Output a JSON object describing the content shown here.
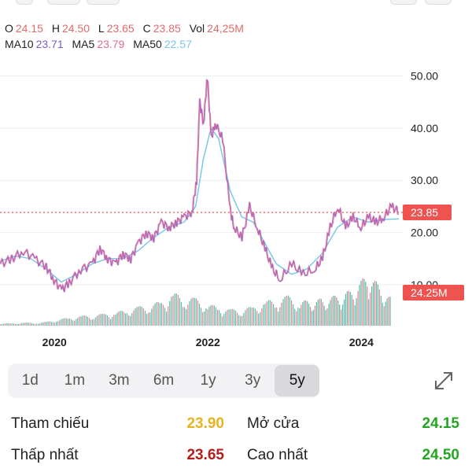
{
  "ohlc": {
    "open_label": "O",
    "open": "24.15",
    "high_label": "H",
    "high": "24.50",
    "low_label": "L",
    "low": "23.65",
    "close_label": "C",
    "close": "23.85",
    "vol_label": "Vol",
    "vol": "24,25M"
  },
  "ma": {
    "ma10_label": "MA10",
    "ma10": "23.71",
    "ma5_label": "MA5",
    "ma5": "23.79",
    "ma50_label": "MA50",
    "ma50": "22.57"
  },
  "colors": {
    "up": "#2a9d8f",
    "down": "#e05a5a",
    "ma10": "#7a5bd0",
    "ma5": "#e06b9a",
    "ma50": "#7cc7ea",
    "price_badge": "#ef5350",
    "gold": "#e6b422",
    "dark_red": "#b51c1c",
    "green": "#22a722"
  },
  "chart_data": {
    "type": "line",
    "x_ticks": [
      "2020",
      "2022",
      "2024"
    ],
    "y_ticks": [
      "50.00",
      "40.00",
      "30.00",
      "20.00",
      "10.00"
    ],
    "ylim": [
      2,
      54
    ],
    "last_price": "23.85",
    "last_volume": "24.25M",
    "series": [
      {
        "x": [
          2019.3,
          2019.45,
          2019.6,
          2019.75,
          2019.9,
          2020.0,
          2020.1,
          2020.2,
          2020.35,
          2020.5,
          2020.6,
          2020.7,
          2020.8,
          2020.9,
          2021.0,
          2021.1,
          2021.2,
          2021.3,
          2021.4,
          2021.5,
          2021.6,
          2021.7,
          2021.8,
          2021.86,
          2021.9,
          2021.95,
          2022.0,
          2022.05,
          2022.1,
          2022.2,
          2022.3,
          2022.35,
          2022.45,
          2022.55,
          2022.65,
          2022.75,
          2022.85,
          2022.95,
          2023.1,
          2023.25,
          2023.4,
          2023.5,
          2023.6,
          2023.7,
          2023.8,
          2023.9,
          2024.0,
          2024.1,
          2024.2,
          2024.3,
          2024.4,
          2024.5
        ],
        "values": [
          14,
          15,
          16.5,
          15,
          13.5,
          11,
          9,
          10.5,
          13,
          14,
          17,
          15,
          14,
          16,
          15,
          18,
          20,
          19,
          22,
          21,
          22,
          23,
          24,
          30,
          45,
          41,
          50,
          38,
          41,
          38,
          24,
          21,
          19,
          25,
          21,
          17,
          13,
          11,
          14,
          12,
          13,
          15,
          21,
          25,
          21,
          23,
          21,
          23,
          22,
          23,
          25,
          24
        ]
      },
      {
        "x": [
          2019.3,
          2019.5,
          2019.7,
          2019.9,
          2020.1,
          2020.3,
          2020.5,
          2020.7,
          2020.9,
          2021.1,
          2021.3,
          2021.5,
          2021.7,
          2021.85,
          2021.95,
          2022.05,
          2022.15,
          2022.3,
          2022.45,
          2022.6,
          2022.75,
          2022.9,
          2023.1,
          2023.3,
          2023.5,
          2023.7,
          2023.9,
          2024.1,
          2024.3,
          2024.5
        ],
        "values": [
          14.5,
          15.5,
          15,
          13,
          10.5,
          12,
          14,
          15,
          15,
          16.5,
          19,
          21,
          22,
          25,
          34,
          40,
          38,
          28,
          23,
          22,
          18,
          14,
          12,
          13,
          16,
          21,
          23,
          22,
          22.5,
          22.6
        ]
      }
    ],
    "volume": {
      "values": [
        0.05,
        0.04,
        0.06,
        0.05,
        0.07,
        0.12,
        0.15,
        0.18,
        0.2,
        0.22,
        0.25,
        0.3,
        0.35,
        0.4,
        0.45,
        0.6,
        0.55,
        0.5,
        0.4,
        0.35,
        0.3,
        0.32,
        0.35,
        0.45,
        0.5,
        0.55,
        0.45,
        0.5,
        0.6,
        0.95,
        0.5
      ],
      "x": [
        2019.3,
        2019.45,
        2019.6,
        2019.75,
        2019.9,
        2020.05,
        2020.2,
        2020.35,
        2020.5,
        2020.65,
        2020.8,
        2020.95,
        2021.1,
        2021.25,
        2021.4,
        2021.55,
        2021.7,
        2021.85,
        2022.0,
        2022.15,
        2022.3,
        2022.45,
        2022.6,
        2022.75,
        2022.9,
        2023.05,
        2023.2,
        2023.5,
        2023.8,
        2024.1,
        2024.4
      ]
    }
  },
  "ranges": {
    "items": [
      "1d",
      "1m",
      "3m",
      "6m",
      "1y",
      "3y",
      "5y"
    ],
    "active": "5y"
  },
  "stats": {
    "ref_label": "Tham chiếu",
    "ref_value": "23.90",
    "open_label": "Mở cửa",
    "open_value": "24.15",
    "low_label": "Thấp nhất",
    "low_value": "23.65",
    "high_label": "Cao nhất",
    "high_value": "24.50"
  }
}
